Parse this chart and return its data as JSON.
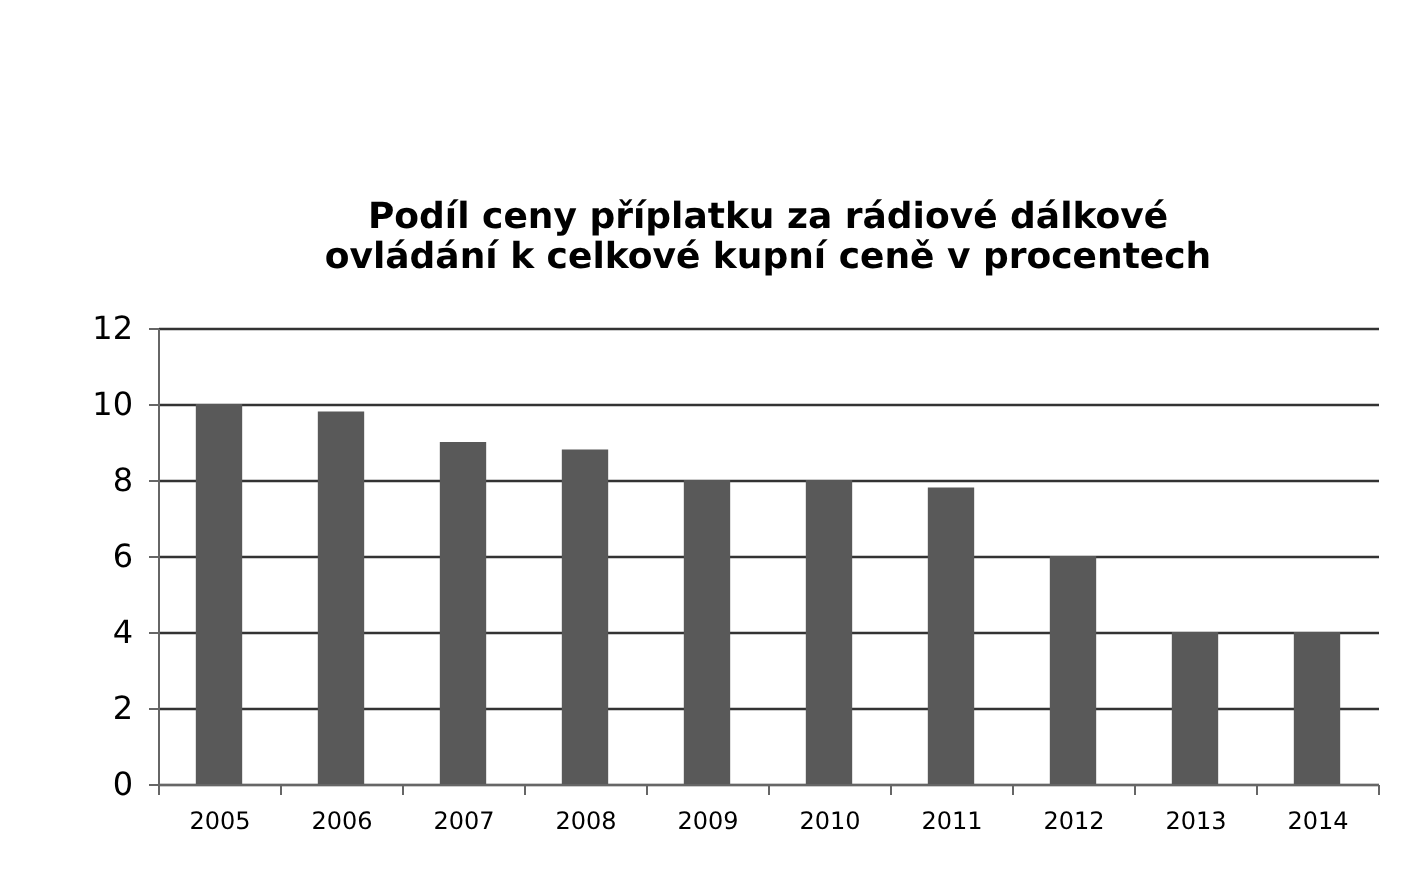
{
  "chart_data": {
    "type": "bar",
    "title": [
      "Podíl ceny příplatku za rádiové dálkové",
      "ovládání k celkové kupní ceně v procentech"
    ],
    "categories": [
      "2005",
      "2006",
      "2007",
      "2008",
      "2009",
      "2010",
      "2011",
      "2012",
      "2013",
      "2014"
    ],
    "values": [
      10,
      9.8,
      9,
      8.8,
      8,
      8,
      7.8,
      6,
      4,
      4
    ],
    "color": "#595959",
    "ylim": [
      0,
      12
    ],
    "yticks": [
      0,
      2,
      4,
      6,
      8,
      10,
      12
    ],
    "grid": "y"
  }
}
